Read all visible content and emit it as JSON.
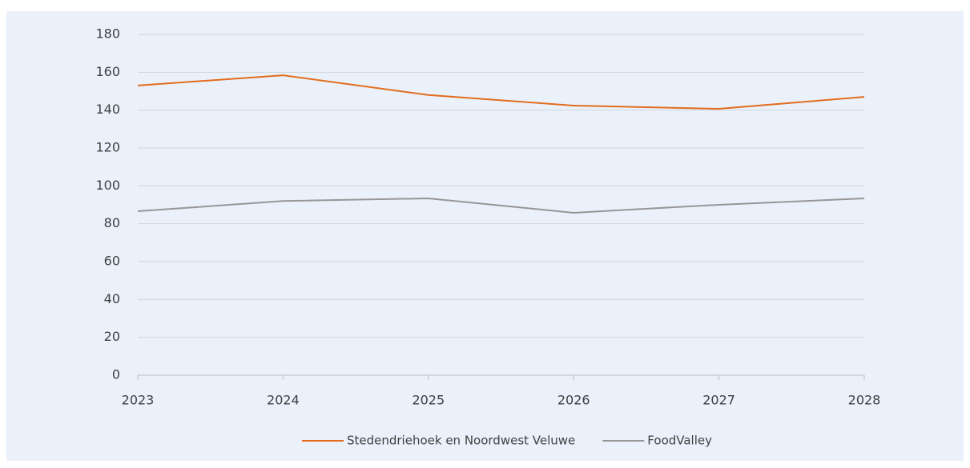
{
  "chart_data": {
    "type": "line",
    "x": [
      2023,
      2024,
      2025,
      2026,
      2027,
      2028
    ],
    "xlim": [
      2023,
      2028
    ],
    "xticks": [
      2023,
      2024,
      2025,
      2026,
      2027,
      2028
    ],
    "ylim": [
      0,
      180
    ],
    "yticks": [
      0,
      20,
      40,
      60,
      80,
      100,
      120,
      140,
      160,
      180
    ],
    "grid": true,
    "legend": "bottom",
    "series": [
      {
        "name": "Stedendriehoek en Noordwest Veluwe",
        "color": "#e36c1e",
        "values": [
          153,
          158.4,
          148,
          142.4,
          140.7,
          147
        ]
      },
      {
        "name": "FoodValley",
        "color": "#969696",
        "values": [
          86.6,
          92,
          93.4,
          85.8,
          90,
          93.4
        ]
      }
    ]
  }
}
